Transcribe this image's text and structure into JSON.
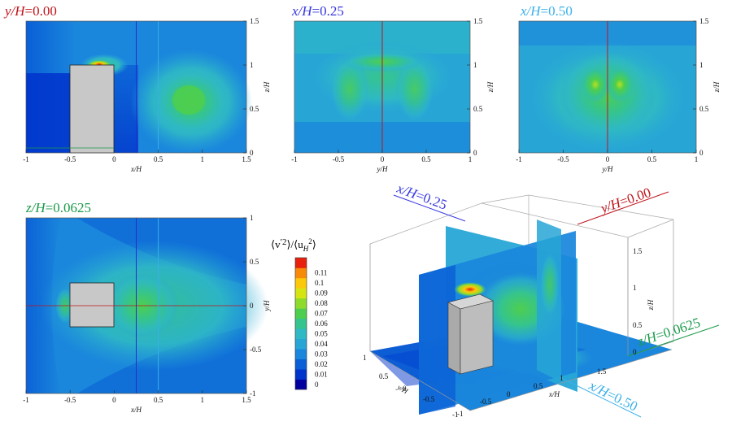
{
  "chart_data": [
    {
      "type": "heatmap",
      "title": "y/H=0.00",
      "title_color": "#c0141b",
      "xlabel": "x/H",
      "ylabel": "z/H",
      "xlim": [
        -1,
        1.5
      ],
      "ylim": [
        0,
        1.5
      ],
      "x_ticks": [
        "-1",
        "-0.5",
        "0",
        "0.5",
        "1",
        "1.5"
      ],
      "y_ticks": [
        "0",
        "0.5",
        "1",
        "1.5"
      ],
      "lines": [
        {
          "at": 0.25,
          "color": "#2a2ad0"
        },
        {
          "at": 0.5,
          "color": "#3ab0e8"
        }
      ]
    },
    {
      "type": "heatmap",
      "title": "x/H=0.25",
      "title_color": "#3838e0",
      "xlabel": "y/H",
      "ylabel": "z/H",
      "xlim": [
        -1,
        1
      ],
      "ylim": [
        0,
        1.5
      ],
      "x_ticks": [
        "-1",
        "-0.5",
        "0",
        "0.5",
        "1"
      ],
      "y_ticks": [
        "0",
        "0.5",
        "1",
        "1.5"
      ],
      "lines": [
        {
          "at": 0,
          "color": "#c0141b"
        }
      ]
    },
    {
      "type": "heatmap",
      "title": "x/H=0.50",
      "title_color": "#3ab0e8",
      "xlabel": "y/H",
      "ylabel": "z/H",
      "xlim": [
        -1,
        1
      ],
      "ylim": [
        0,
        1.5
      ],
      "x_ticks": [
        "-1",
        "-0.5",
        "0",
        "0.5",
        "1"
      ],
      "y_ticks": [
        "0",
        "0.5",
        "1",
        "1.5"
      ],
      "lines": [
        {
          "at": 0,
          "color": "#c0141b"
        }
      ]
    },
    {
      "type": "heatmap",
      "title": "z/H=0.0625",
      "title_color": "#1a9a4a",
      "xlabel": "x/H",
      "ylabel": "y/H",
      "xlim": [
        -1,
        1.5
      ],
      "ylim": [
        -1,
        1
      ],
      "x_ticks": [
        "-1",
        "-0.5",
        "0",
        "0.5",
        "1",
        "1.5"
      ],
      "y_ticks": [
        "-1",
        "-0.5",
        "0",
        "0.5",
        "1"
      ],
      "lines": [
        {
          "at": 0.25,
          "color": "#2a2ad0"
        },
        {
          "at": 0.5,
          "color": "#3ab0e8"
        }
      ]
    }
  ],
  "colorbar": {
    "title_parts": [
      "⟨v",
      "′2",
      "⟩/⟨u",
      "H",
      "2",
      "⟩"
    ],
    "levels": [
      "0",
      "0.01",
      "0.02",
      "0.03",
      "0.04",
      "0.05",
      "0.06",
      "0.07",
      "0.08",
      "0.09",
      "0.1",
      "0.11"
    ],
    "colors": [
      "#00009f",
      "#0033cc",
      "#0a5fd6",
      "#1a86dc",
      "#27a6d6",
      "#2fb9c4",
      "#35c48e",
      "#4ece4f",
      "#8edb2c",
      "#d6e414",
      "#fbc90a",
      "#f88a0a",
      "#e8200e"
    ]
  },
  "view3d": {
    "labels": {
      "x025": "x/H=0.25",
      "y000": "y/H=0.00",
      "z0625": "z/H=0.0625",
      "x050": "x/H=0.50"
    },
    "axis_titles": {
      "z": "z/H",
      "x": "x/H",
      "y": "y/H"
    },
    "z_ticks": [
      "1.5",
      "1",
      "0.5",
      "0"
    ],
    "x_ticks": [
      "-1",
      "-0.5",
      "0",
      "0.5",
      "1",
      "1.5"
    ],
    "y_ticks": [
      "1",
      "0.5",
      "0",
      "-0.5",
      "-1"
    ]
  }
}
